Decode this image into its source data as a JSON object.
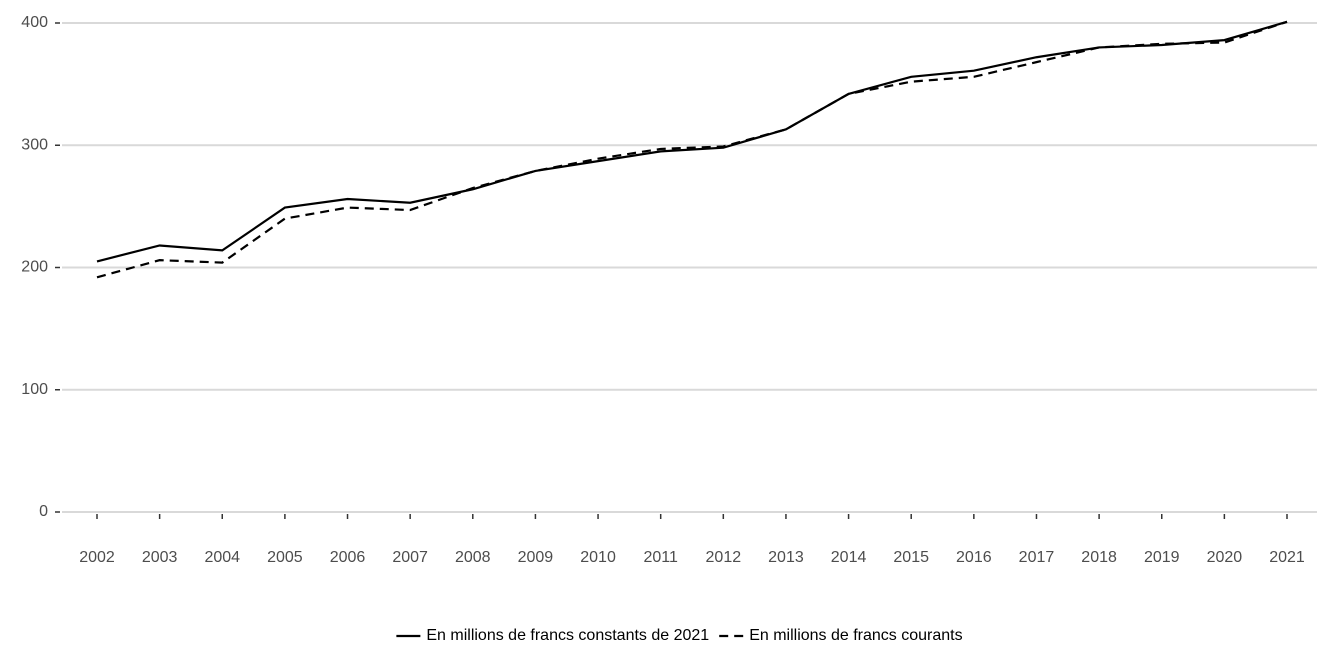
{
  "chart_data": {
    "type": "line",
    "categories": [
      "2002",
      "2003",
      "2004",
      "2005",
      "2006",
      "2007",
      "2008",
      "2009",
      "2010",
      "2011",
      "2012",
      "2013",
      "2014",
      "2015",
      "2016",
      "2017",
      "2018",
      "2019",
      "2020",
      "2021"
    ],
    "series": [
      {
        "name": "En millions de francs constants de 2021",
        "color": "#000000",
        "linestyle": "solid",
        "values": [
          205,
          218,
          214,
          249,
          256,
          253,
          264,
          279,
          287,
          295,
          298,
          313,
          342,
          356,
          361,
          372,
          380,
          382,
          386,
          401
        ]
      },
      {
        "name": "En millions de francs courants",
        "color": "#000000",
        "linestyle": "dashed",
        "values": [
          192,
          206,
          204,
          240,
          249,
          247,
          265,
          279,
          289,
          297,
          299,
          313,
          342,
          352,
          356,
          368,
          380,
          383,
          384,
          401
        ]
      }
    ],
    "ylim": [
      0,
      400
    ],
    "yticks": [
      0,
      100,
      200,
      300,
      400
    ],
    "grid": true,
    "legend": "bottom"
  }
}
